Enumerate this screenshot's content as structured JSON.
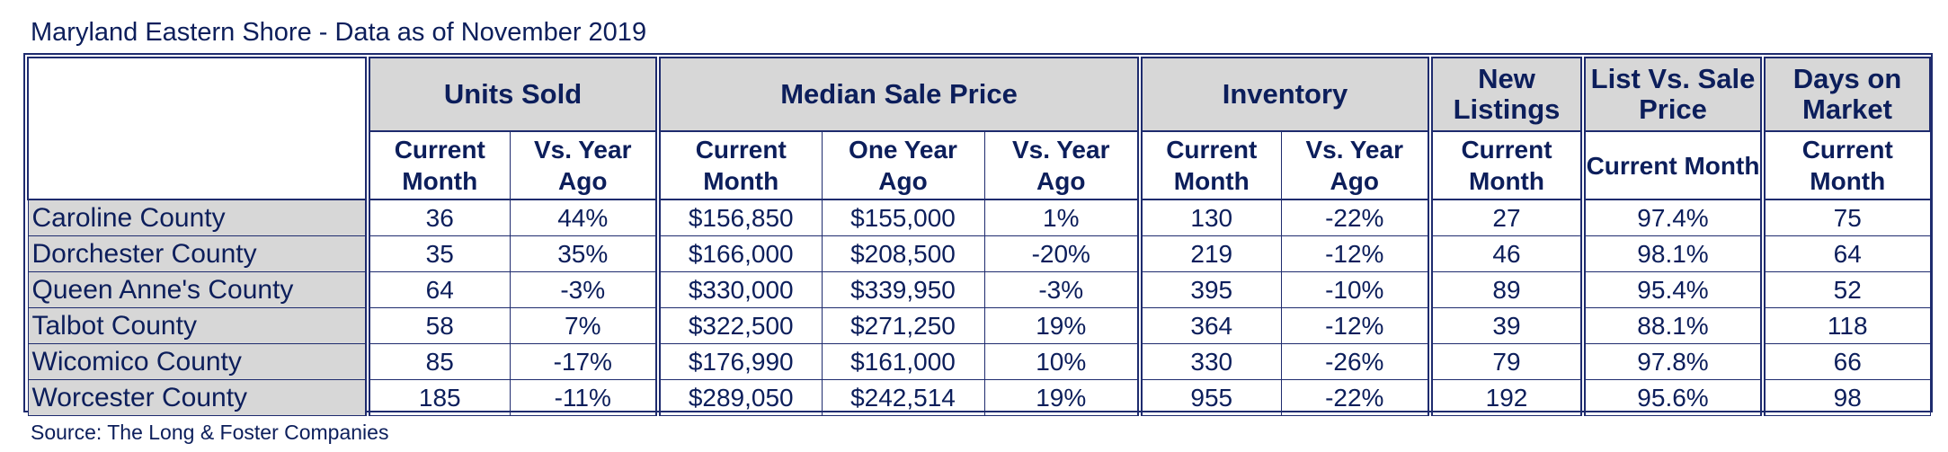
{
  "title": "Maryland Eastern Shore - Data as of November 2019",
  "source": "Source: The Long & Foster Companies",
  "groups": {
    "units_sold": "Units Sold",
    "median_sale_price": "Median Sale Price",
    "inventory": "Inventory",
    "new_listings": "New Listings",
    "list_vs_sale": "List Vs. Sale Price",
    "days_on_market": "Days on Market"
  },
  "subheaders": {
    "current_month": "Current Month",
    "vs_year_ago": "Vs. Year Ago",
    "one_year_ago": "One Year Ago"
  },
  "chart_data": {
    "type": "table",
    "title": "Maryland Eastern Shore - Data as of November 2019",
    "columns": [
      "Units Sold / Current Month",
      "Units Sold / Vs. Year Ago",
      "Median Sale Price / Current Month",
      "Median Sale Price / One Year Ago",
      "Median Sale Price / Vs. Year Ago",
      "Inventory / Current Month",
      "Inventory / Vs. Year Ago",
      "New Listings / Current Month",
      "List Vs. Sale Price / Current Month",
      "Days on Market / Current Month"
    ],
    "rows": [
      {
        "county": "Caroline County",
        "cells": [
          "36",
          "44%",
          "$156,850",
          "$155,000",
          "1%",
          "130",
          "-22%",
          "27",
          "97.4%",
          "75"
        ]
      },
      {
        "county": "Dorchester County",
        "cells": [
          "35",
          "35%",
          "$166,000",
          "$208,500",
          "-20%",
          "219",
          "-12%",
          "46",
          "98.1%",
          "64"
        ]
      },
      {
        "county": "Queen Anne's County",
        "cells": [
          "64",
          "-3%",
          "$330,000",
          "$339,950",
          "-3%",
          "395",
          "-10%",
          "89",
          "95.4%",
          "52"
        ]
      },
      {
        "county": "Talbot County",
        "cells": [
          "58",
          "7%",
          "$322,500",
          "$271,250",
          "19%",
          "364",
          "-12%",
          "39",
          "88.1%",
          "118"
        ]
      },
      {
        "county": "Wicomico County",
        "cells": [
          "85",
          "-17%",
          "$176,990",
          "$161,000",
          "10%",
          "330",
          "-26%",
          "79",
          "97.8%",
          "66"
        ]
      },
      {
        "county": "Worcester County",
        "cells": [
          "185",
          "-11%",
          "$289,050",
          "$242,514",
          "19%",
          "955",
          "-22%",
          "192",
          "95.6%",
          "98"
        ]
      }
    ]
  }
}
